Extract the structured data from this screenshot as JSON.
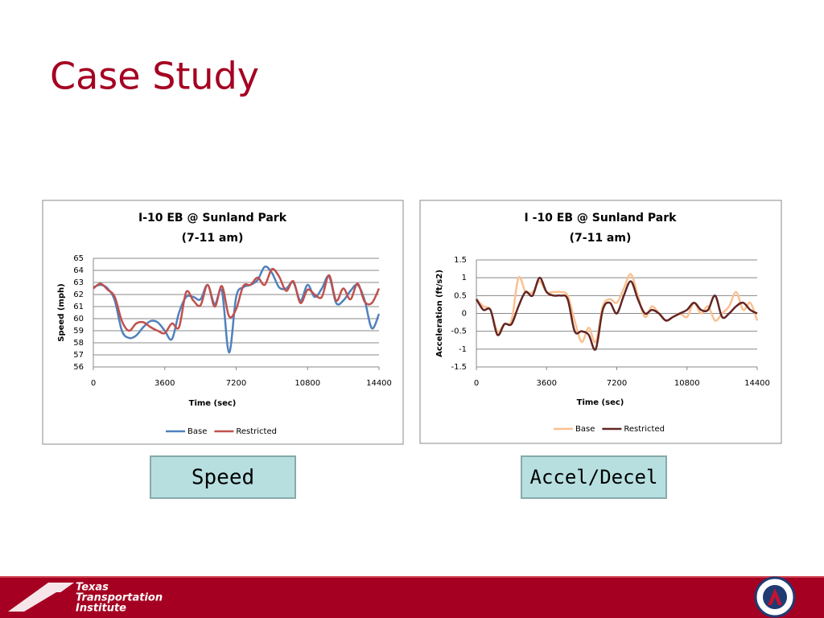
{
  "title": "Case Study",
  "buttons": [
    "Speed",
    "Accel/Decel"
  ],
  "footer": {
    "lines": [
      "Texas",
      "Transportation",
      "Institute"
    ]
  },
  "chart_data": [
    {
      "type": "line",
      "title": "I-10 EB @ Sunland Park",
      "subtitle": "(7-11 am)",
      "x_label": "Time (sec)",
      "y_label": "Speed (mph)",
      "x": [
        0,
        360,
        720,
        1080,
        1440,
        1800,
        2160,
        2520,
        2880,
        3240,
        3600,
        3960,
        4320,
        4680,
        5040,
        5400,
        5760,
        6120,
        6480,
        6840,
        7200,
        7560,
        7920,
        8280,
        8640,
        9000,
        9360,
        9720,
        10080,
        10440,
        10800,
        11160,
        11520,
        11880,
        12240,
        12600,
        12960,
        13320,
        13680,
        14040,
        14400
      ],
      "xlim": [
        0,
        14400
      ],
      "xticks": [
        0,
        3600,
        7200,
        10800,
        14400
      ],
      "ylim": [
        56,
        65
      ],
      "yticks": [
        56,
        57,
        58,
        59,
        60,
        61,
        62,
        63,
        64,
        65
      ],
      "grid": true,
      "legend": "bottom",
      "series": [
        {
          "name": "Base",
          "color": "#4f81bd",
          "values": [
            62.6,
            62.8,
            62.5,
            61.5,
            59.0,
            58.4,
            58.6,
            59.3,
            59.8,
            59.7,
            59.0,
            58.3,
            60.5,
            61.8,
            61.8,
            61.6,
            62.8,
            61.2,
            62.3,
            57.2,
            61.8,
            62.6,
            62.8,
            63.2,
            64.3,
            63.8,
            62.6,
            62.5,
            63.0,
            61.5,
            62.8,
            61.8,
            62.5,
            63.5,
            61.3,
            61.5,
            62.3,
            62.8,
            61.5,
            59.2,
            60.4
          ]
        },
        {
          "name": "Restricted",
          "color": "#c0504d",
          "values": [
            62.5,
            62.9,
            62.4,
            61.8,
            59.8,
            59.0,
            59.6,
            59.7,
            59.3,
            59.0,
            58.8,
            59.6,
            59.3,
            62.2,
            61.5,
            61.1,
            62.8,
            61.0,
            62.7,
            60.2,
            60.8,
            62.7,
            62.8,
            63.4,
            62.8,
            64.1,
            63.5,
            62.3,
            63.1,
            61.3,
            62.4,
            62.0,
            61.8,
            63.6,
            61.5,
            62.5,
            61.6,
            62.9,
            61.4,
            61.3,
            62.5
          ]
        }
      ]
    },
    {
      "type": "line",
      "title": "I -10 EB @ Sunland Park",
      "subtitle": "(7-11 am)",
      "x_label": "Time (sec)",
      "y_label": "Acceleration (ft/s2)",
      "x": [
        0,
        360,
        720,
        1080,
        1440,
        1800,
        2160,
        2520,
        2880,
        3240,
        3600,
        3960,
        4320,
        4680,
        5040,
        5400,
        5760,
        6120,
        6480,
        6840,
        7200,
        7560,
        7920,
        8280,
        8640,
        9000,
        9360,
        9720,
        10080,
        10440,
        10800,
        11160,
        11520,
        11880,
        12240,
        12600,
        12960,
        13320,
        13680,
        14040,
        14400
      ],
      "xlim": [
        0,
        14400
      ],
      "xticks": [
        0,
        3600,
        7200,
        10800,
        14400
      ],
      "ylim": [
        -1.5,
        1.5
      ],
      "yticks": [
        -1.5,
        -1,
        -0.5,
        0,
        0.5,
        1,
        1.5
      ],
      "grid": true,
      "legend": "bottom",
      "series": [
        {
          "name": "Base",
          "color": "#fac090",
          "values": [
            0.4,
            0.2,
            0.1,
            -0.5,
            -0.3,
            -0.2,
            1.0,
            0.6,
            0.6,
            0.9,
            0.6,
            0.6,
            0.6,
            0.5,
            -0.2,
            -0.8,
            -0.4,
            -0.8,
            0.2,
            0.4,
            0.3,
            0.7,
            1.1,
            0.5,
            -0.1,
            0.2,
            0.0,
            -0.2,
            -0.1,
            0.0,
            -0.1,
            0.3,
            0.0,
            0.2,
            -0.2,
            0.0,
            0.2,
            0.6,
            0.1,
            0.3,
            -0.2
          ]
        },
        {
          "name": "Restricted",
          "color": "#632523",
          "values": [
            0.4,
            0.1,
            0.1,
            -0.6,
            -0.3,
            -0.3,
            0.2,
            0.6,
            0.5,
            1.0,
            0.6,
            0.5,
            0.5,
            0.4,
            -0.5,
            -0.5,
            -0.6,
            -1.0,
            0.1,
            0.3,
            0.0,
            0.5,
            0.9,
            0.4,
            0.0,
            0.1,
            0.0,
            -0.2,
            -0.1,
            0.0,
            0.1,
            0.3,
            0.1,
            0.1,
            0.5,
            -0.1,
            0.0,
            0.2,
            0.3,
            0.1,
            0.0
          ]
        }
      ]
    }
  ]
}
